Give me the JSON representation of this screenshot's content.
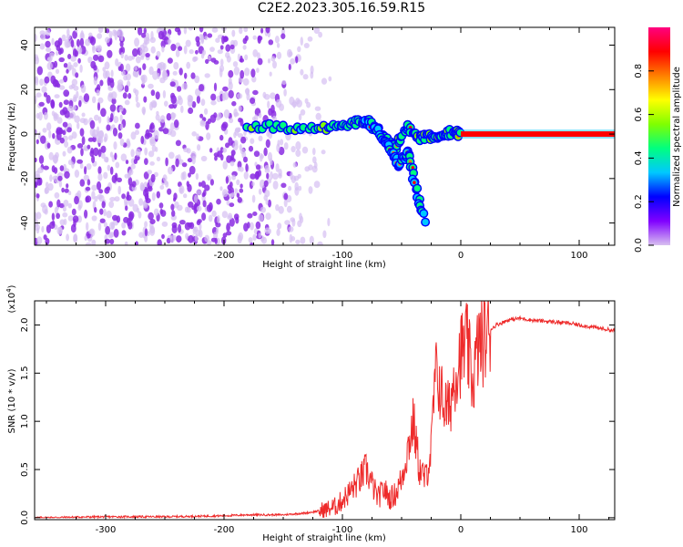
{
  "figure": {
    "title": "C2E2.2023.305.16.59.R15"
  },
  "chart_data": [
    {
      "type": "heatmap",
      "xlabel": "Height of straight line (km)",
      "ylabel": "Frequency (Hz)",
      "xlim": [
        -360,
        130
      ],
      "ylim": [
        -50,
        48
      ],
      "x_ticks": [
        -300,
        -200,
        -100,
        0,
        100
      ],
      "x_tick_labels": [
        "-300",
        "-200",
        "-100",
        "0",
        "100"
      ],
      "y_ticks": [
        -40,
        -20,
        0,
        20,
        40
      ],
      "y_tick_labels": [
        "-40",
        "-20",
        "0",
        "20",
        "40"
      ],
      "colorbar": {
        "label": "Normalized spectral amplitude",
        "range": [
          0,
          1
        ],
        "ticks": [
          0.0,
          0.2,
          0.4,
          0.6,
          0.8
        ],
        "tick_labels": [
          "0.0",
          "0.2",
          "0.4",
          "0.6",
          "0.8"
        ],
        "colormap": [
          "#d8c0f0",
          "#8000ff",
          "#0000ff",
          "#00c8ff",
          "#00ff80",
          "#80ff00",
          "#ffff00",
          "#ff8000",
          "#ff0000",
          "#ff0080"
        ]
      },
      "features": {
        "noise_region_x": [
          -360,
          -140
        ],
        "carrier_line": {
          "x": [
            0,
            130
          ],
          "y": 0,
          "amplitude": 0.85
        },
        "main_track": [
          [
            -180,
            4
          ],
          [
            -150,
            3
          ],
          [
            -120,
            3
          ],
          [
            -100,
            3
          ],
          [
            -85,
            6
          ],
          [
            -75,
            3
          ],
          [
            -65,
            -2
          ],
          [
            -55,
            -6
          ],
          [
            -45,
            4
          ],
          [
            -35,
            -2
          ],
          [
            -25,
            -1
          ],
          [
            -15,
            0
          ],
          [
            -5,
            1
          ],
          [
            0,
            0
          ]
        ],
        "lower_branch": [
          [
            -80,
            6
          ],
          [
            -70,
            2
          ],
          [
            -60,
            -6
          ],
          [
            -52,
            -14
          ],
          [
            -45,
            -8
          ],
          [
            -38,
            -24
          ],
          [
            -30,
            -40
          ]
        ]
      }
    },
    {
      "type": "line",
      "xlabel": "Height of straight line (km)",
      "ylabel": "SNR (10 * v/v)",
      "multiplier_label": "(x10",
      "multiplier_exp": "4",
      "xlim": [
        -360,
        130
      ],
      "ylim": [
        -0.02,
        2.25
      ],
      "x_ticks": [
        -300,
        -200,
        -100,
        0,
        100
      ],
      "x_tick_labels": [
        "-300",
        "-200",
        "-100",
        "0",
        "100"
      ],
      "y_ticks": [
        0.0,
        0.5,
        1.0,
        1.5,
        2.0
      ],
      "y_tick_labels": [
        "0.0",
        "0.5",
        "1.0",
        "1.5",
        "2.0"
      ],
      "series": [
        {
          "color": "#ee2a2a",
          "x": [
            -360,
            -300,
            -250,
            -200,
            -180,
            -150,
            -130,
            -115,
            -105,
            -95,
            -85,
            -80,
            -75,
            -70,
            -65,
            -60,
            -55,
            -50,
            -45,
            -40,
            -35,
            -30,
            -25,
            -22,
            -20,
            -15,
            -10,
            -5,
            0,
            5,
            10,
            15,
            20,
            25,
            30,
            40,
            50,
            60,
            70,
            80,
            90,
            100,
            110,
            120,
            130
          ],
          "y": [
            0.0,
            0.01,
            0.01,
            0.02,
            0.03,
            0.03,
            0.05,
            0.08,
            0.12,
            0.25,
            0.4,
            0.5,
            0.35,
            0.2,
            0.3,
            0.2,
            0.25,
            0.4,
            0.7,
            1.0,
            0.5,
            0.4,
            0.7,
            1.4,
            1.5,
            1.2,
            1.1,
            1.5,
            1.7,
            1.8,
            1.4,
            1.8,
            1.85,
            1.95,
            2.0,
            2.05,
            2.07,
            2.05,
            2.04,
            2.03,
            2.02,
            2.0,
            1.98,
            1.96,
            1.94
          ]
        }
      ]
    }
  ]
}
